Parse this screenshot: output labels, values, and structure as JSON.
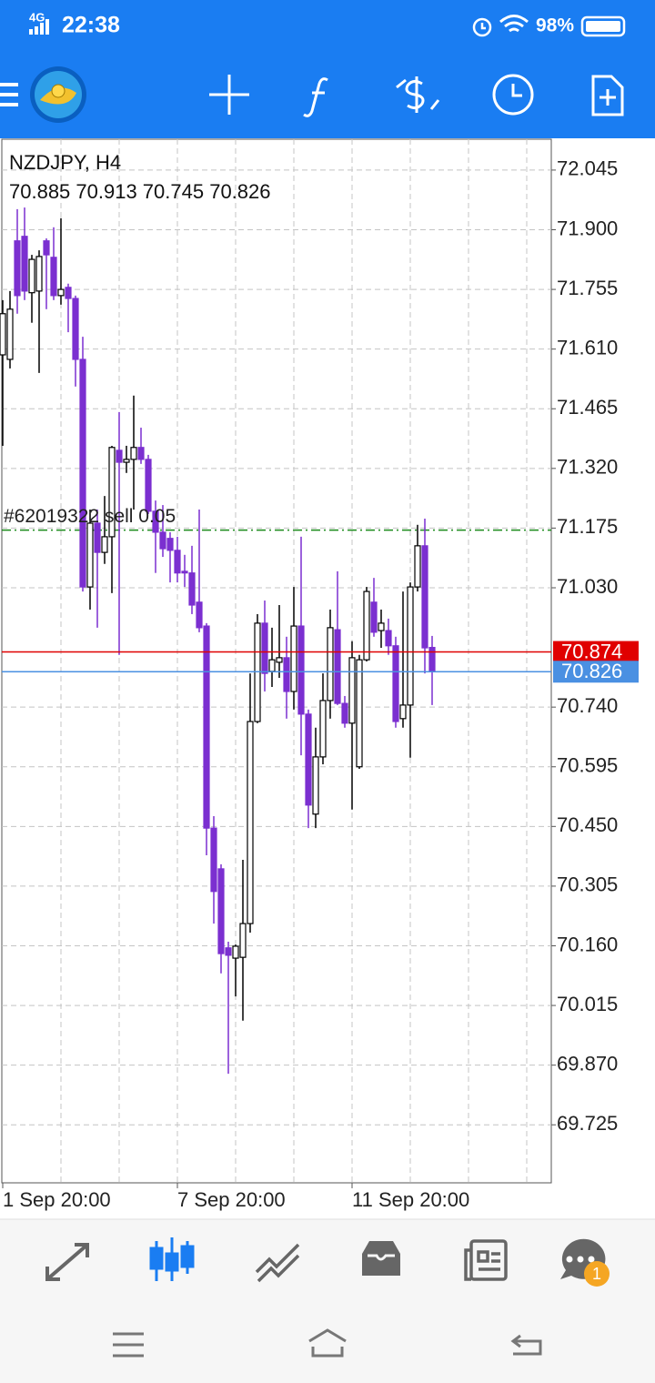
{
  "status_bar": {
    "network": "4G",
    "time": "22:38",
    "battery": "98%"
  },
  "chart_data": {
    "type": "candlestick",
    "symbol": "NZDJPY, H4",
    "ohlc_label": "70.885 70.913 70.745 70.826",
    "order_label": "#62019322 sell 0.05",
    "order_price": 71.17,
    "order_color": "#1a8a1a",
    "bid_line": {
      "value": 70.874,
      "color": "#e00000"
    },
    "last_line": {
      "value": 70.826,
      "color": "#4a90e2"
    },
    "up_color": "#000000",
    "down_color": "#7b2fd0",
    "grid": true,
    "ylim": [
      69.584,
      72.12
    ],
    "yticks": [
      72.045,
      {
        "value": 71.9,
        "label": "71.900"
      },
      71.755,
      {
        "value": 71.61,
        "label": "71.610"
      },
      71.465,
      {
        "value": 71.32,
        "label": "71.320"
      },
      71.175,
      {
        "value": 71.03,
        "label": "71.030"
      },
      {
        "value": 70.74,
        "label": "70.740"
      },
      70.595,
      {
        "value": 70.45,
        "label": "70.450"
      },
      70.305,
      {
        "value": 70.16,
        "label": "70.160"
      },
      70.015,
      {
        "value": 69.87,
        "label": "69.870"
      },
      69.725
    ],
    "categories": [
      "1 Sep 20:00",
      null,
      null,
      null,
      null,
      null,
      null,
      null,
      null,
      null,
      null,
      null,
      null,
      null,
      null,
      null,
      null,
      null,
      null,
      null,
      null,
      null,
      null,
      null,
      "7 Sep 20:00",
      null,
      null,
      null,
      null,
      null,
      null,
      null,
      null,
      null,
      null,
      null,
      null,
      null,
      null,
      null,
      null,
      null,
      null,
      null,
      null,
      null,
      null,
      null,
      "11 Sep 20:00",
      null,
      null,
      null,
      null,
      null,
      null,
      null,
      null,
      null,
      null,
      null
    ],
    "open": [
      71.596,
      71.585,
      71.873,
      71.884,
      71.747,
      71.751,
      71.873,
      71.833,
      71.74,
      71.76,
      71.733,
      71.585,
      71.032,
      71.187,
      71.116,
      71.154,
      71.364,
      71.335,
      71.342,
      71.371,
      71.342,
      71.216,
      71.165,
      71.15,
      71.121,
      71.07,
      71.066,
      70.995,
      70.937,
      70.446,
      70.347,
      70.155,
      70.13,
      70.132,
      70.214,
      70.705,
      70.944,
      70.827,
      70.849,
      70.86,
      70.778,
      70.937,
      70.723,
      70.48,
      70.619,
      70.756,
      70.928,
      70.749,
      70.701,
      70.595,
      70.855,
      70.995,
      70.926,
      70.926,
      70.889,
      70.712,
      70.745,
      71.032,
      71.132,
      70.885
    ],
    "high": [
      71.729,
      71.751,
      71.95,
      71.954,
      71.839,
      71.85,
      71.879,
      71.906,
      71.928,
      71.769,
      71.74,
      71.64,
      71.22,
      71.22,
      71.253,
      71.375,
      71.457,
      71.375,
      71.497,
      71.419,
      71.353,
      71.242,
      71.231,
      71.165,
      71.154,
      71.11,
      71.132,
      71.22,
      70.944,
      70.475,
      70.358,
      70.17,
      70.163,
      70.369,
      70.822,
      70.966,
      70.999,
      70.933,
      70.988,
      70.911,
      71.032,
      71.154,
      70.734,
      70.69,
      70.822,
      70.977,
      71.07,
      70.767,
      70.9,
      70.867,
      71.032,
      71.054,
      70.977,
      70.955,
      70.911,
      71.021,
      71.043,
      71.183,
      71.198,
      70.913
    ],
    "low": [
      71.375,
      71.563,
      71.696,
      71.729,
      71.674,
      71.552,
      71.707,
      71.729,
      71.718,
      71.651,
      71.519,
      71.021,
      70.977,
      70.933,
      71.088,
      71.017,
      70.867,
      71.309,
      71.22,
      71.331,
      71.209,
      71.066,
      71.105,
      71.043,
      71.043,
      71.032,
      70.966,
      70.922,
      70.38,
      70.214,
      70.093,
      69.849,
      70.037,
      69.978,
      70.192,
      70.701,
      70.778,
      70.789,
      70.811,
      70.712,
      70.734,
      70.623,
      70.446,
      70.446,
      70.601,
      70.712,
      70.745,
      70.69,
      70.491,
      70.59,
      70.851,
      70.911,
      70.884,
      70.867,
      70.69,
      70.69,
      70.617,
      71.021,
      70.822,
      70.745
    ],
    "close": [
      71.696,
      71.707,
      71.74,
      71.751,
      71.828,
      71.835,
      71.839,
      71.74,
      71.755,
      71.733,
      71.585,
      71.032,
      71.187,
      71.116,
      71.154,
      71.371,
      71.335,
      71.342,
      71.371,
      71.342,
      71.216,
      71.165,
      71.125,
      71.121,
      71.066,
      71.066,
      70.988,
      70.933,
      70.446,
      70.292,
      70.141,
      70.137,
      70.159,
      70.214,
      70.705,
      70.944,
      70.822,
      70.855,
      70.86,
      70.778,
      70.937,
      70.723,
      70.502,
      70.619,
      70.756,
      70.933,
      70.749,
      70.701,
      70.86,
      70.855,
      71.021,
      70.922,
      70.944,
      70.889,
      70.705,
      70.745,
      71.032,
      71.132,
      70.884,
      70.826
    ]
  },
  "bottom_nav": {
    "badge": "1"
  }
}
